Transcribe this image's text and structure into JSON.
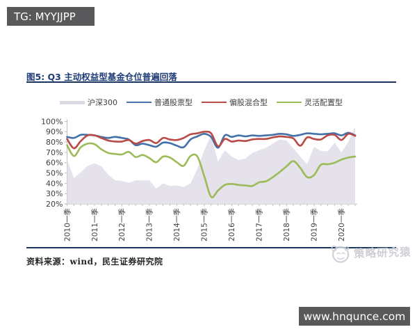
{
  "top_badge": {
    "text": "TG: MYYJJPP"
  },
  "bottom_badge": {
    "text": "www.hnqunce.com"
  },
  "figure": {
    "title": "图5: Q3 主动权益型基金仓位普遍回落",
    "source_note": "资料来源：wind，民生证券研究院"
  },
  "watermark": {
    "text": "策略研究猿",
    "icon": "monkey-magnifier-icon"
  },
  "colors": {
    "badge_bg": "#59595b",
    "title_text": "#1e3c78",
    "rule": "#17375e",
    "axis": "#bfbfbf",
    "tick_label": "#404040",
    "area_fill": "#e5e2ec",
    "legend_area_swatch": "#dcd9e2",
    "blue_line": "#4472a8",
    "red_line": "#b84b47",
    "green_line": "#9cbb59",
    "watermark_gray": "#c7c7cf"
  },
  "chart_data": {
    "type": "area+line",
    "title": "图5: Q3 主动权益型基金仓位普遍回落",
    "xlabel": "",
    "ylabel": "",
    "ylim": [
      20,
      100
    ],
    "ytick_step": 10,
    "ytick_labels": [
      "100%",
      "90%",
      "80%",
      "70%",
      "60%",
      "50%",
      "40%",
      "30%",
      "20%"
    ],
    "x_tick_labels": [
      "2010一季",
      "2011一季",
      "2012一季",
      "2013一季",
      "2014一季",
      "2015一季",
      "2016一季",
      "2017一季",
      "2018一季",
      "2019一季",
      "2020一季"
    ],
    "x_ticks_every_label": 4,
    "grid": false,
    "legend_position": "top",
    "categories": [
      "2010Q1",
      "2010Q2",
      "2010Q3",
      "2010Q4",
      "2011Q1",
      "2011Q2",
      "2011Q3",
      "2011Q4",
      "2012Q1",
      "2012Q2",
      "2012Q3",
      "2012Q4",
      "2013Q1",
      "2013Q2",
      "2013Q3",
      "2013Q4",
      "2014Q1",
      "2014Q2",
      "2014Q3",
      "2014Q4",
      "2015Q1",
      "2015Q2",
      "2015Q3",
      "2015Q4",
      "2016Q1",
      "2016Q2",
      "2016Q3",
      "2016Q4",
      "2017Q1",
      "2017Q2",
      "2017Q3",
      "2017Q4",
      "2018Q1",
      "2018Q2",
      "2018Q3",
      "2018Q4",
      "2019Q1",
      "2019Q2",
      "2019Q3",
      "2019Q4",
      "2020Q1",
      "2020Q2",
      "2020Q3"
    ],
    "series": [
      {
        "name": "沪深300",
        "type": "area",
        "color": "#e5e2ec",
        "values": [
          63,
          45,
          51,
          57,
          59.5,
          56.5,
          48.5,
          43,
          42.5,
          40.5,
          43,
          43,
          43,
          35,
          40,
          37.5,
          38,
          36.5,
          40,
          54,
          72,
          86.5,
          61,
          72,
          66,
          62.5,
          64,
          69.5,
          72,
          74.5,
          78.5,
          82.5,
          81.5,
          74,
          66,
          58.5,
          75.5,
          71.5,
          71,
          79.5,
          70,
          80,
          95
        ]
      },
      {
        "name": "普通股票型",
        "type": "line",
        "color": "#4472a8",
        "values": [
          85,
          84,
          87,
          87,
          86.5,
          85,
          84,
          85,
          84,
          82.5,
          77,
          78.5,
          77,
          75.5,
          79.5,
          79,
          76.5,
          75,
          82.5,
          85.5,
          88,
          85,
          74.5,
          86.5,
          85,
          86.5,
          85.5,
          86.5,
          86,
          86.5,
          87,
          88,
          87.5,
          86,
          87,
          88.5,
          88,
          87.5,
          88,
          88.5,
          86.5,
          89,
          86.5
        ]
      },
      {
        "name": "偏股混合型",
        "type": "line",
        "color": "#b84b47",
        "values": [
          83,
          74,
          81,
          86.5,
          86.5,
          84,
          81.5,
          80.5,
          80.5,
          82,
          78.5,
          81,
          82,
          79,
          84,
          82.5,
          82,
          84,
          87.5,
          88.5,
          90,
          88.5,
          76,
          83,
          80.5,
          81.5,
          81,
          82.5,
          83,
          83,
          84.5,
          85.5,
          85,
          83.5,
          76.5,
          84.5,
          83,
          82.5,
          86.5,
          87,
          82,
          88,
          86
        ]
      },
      {
        "name": "灵活配置型",
        "type": "line",
        "color": "#9cbb59",
        "values": [
          77,
          66.5,
          75,
          78.5,
          78,
          73,
          69.5,
          68.5,
          68,
          70.5,
          65.5,
          67.5,
          64.5,
          60.5,
          66,
          65,
          60.5,
          57,
          66.5,
          66,
          47,
          27,
          33,
          38.5,
          39.5,
          38.5,
          38,
          37.5,
          41,
          42,
          46,
          51,
          56.5,
          61.5,
          55,
          46,
          48,
          58,
          58.5,
          60,
          63,
          65,
          66
        ]
      }
    ]
  }
}
